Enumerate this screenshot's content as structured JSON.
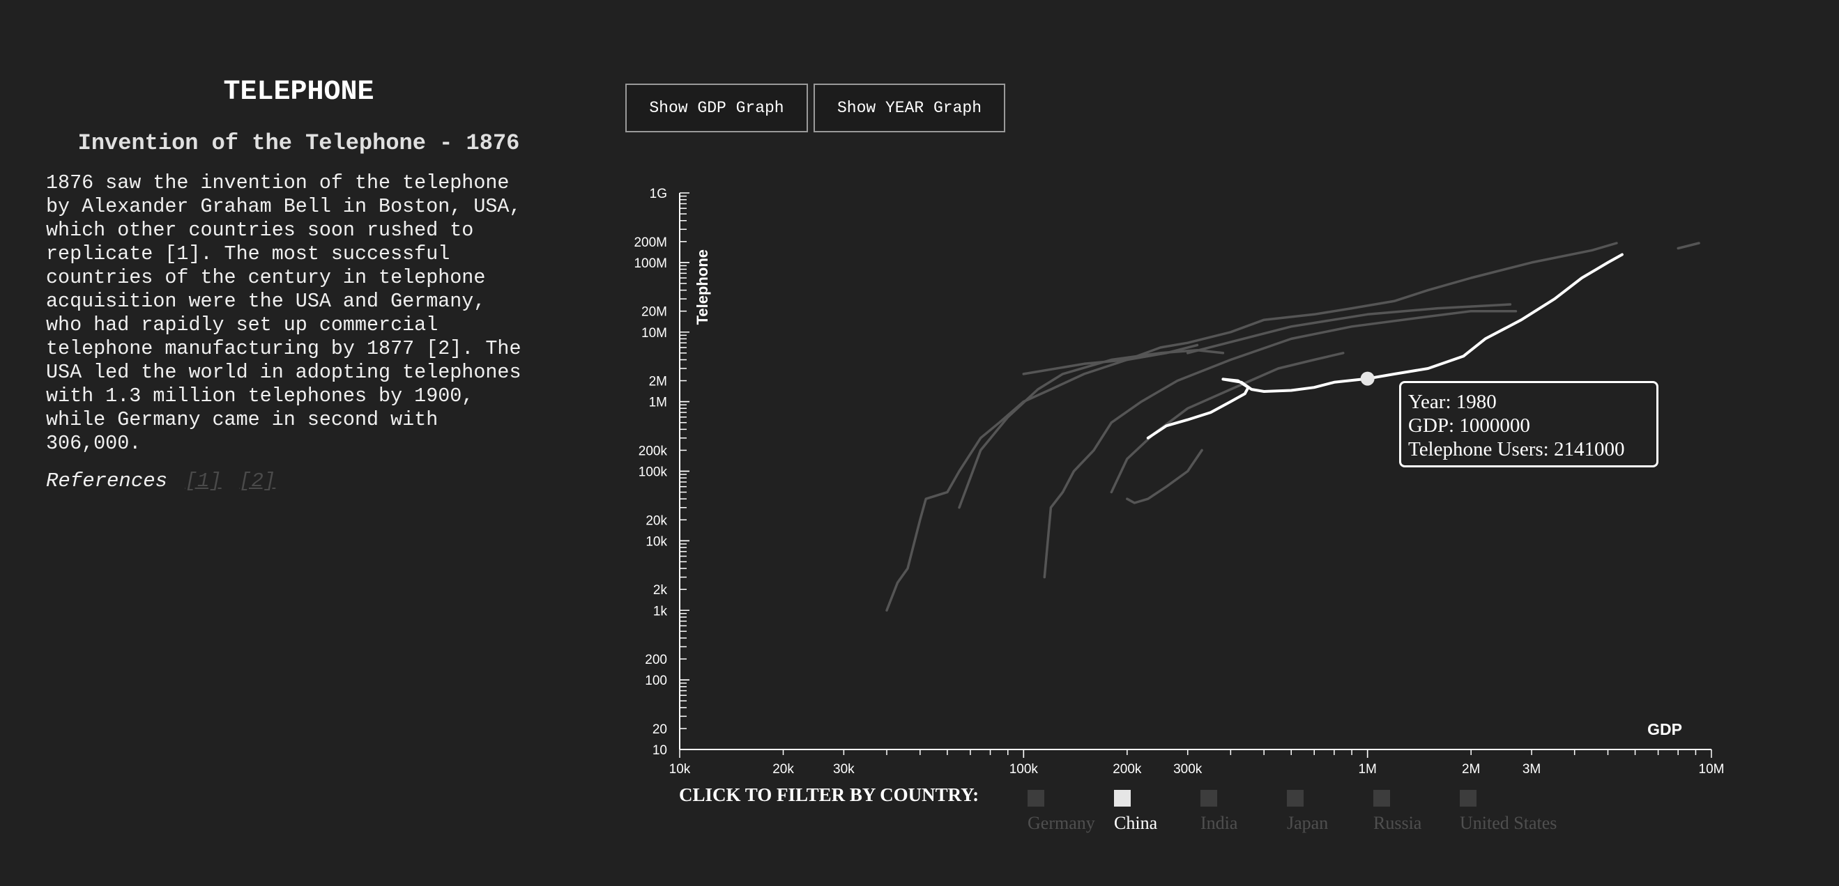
{
  "sidebar": {
    "title": "TELEPHONE",
    "subtitle": "Invention of the Telephone - 1876",
    "body": "1876 saw the invention of the telephone\nby Alexander Graham Bell in Boston, USA,\nwhich other countries soon rushed to\nreplicate [1]. The most successful\ncountries of the century in telephone\nacquisition were the USA and Germany,\nwho had rapidly set up commercial\ntelephone manufacturing by 1877 [2]. The\nUSA led the world in adopting telephones\nwith 1.3 million telephones by 1900,\nwhile Germany came in second with\n306,000.",
    "references_label": "References",
    "references": [
      "[1]",
      "[2]"
    ]
  },
  "buttons": {
    "gdp": "Show GDP Graph",
    "year": "Show YEAR Graph"
  },
  "filter": {
    "label": "CLICK TO FILTER BY COUNTRY:",
    "countries": [
      "Germany",
      "China",
      "India",
      "Japan",
      "Russia",
      "United States"
    ],
    "selected": "China"
  },
  "tooltip": {
    "year": "Year: 1980",
    "gdp": "GDP: 1000000",
    "users": "Telephone Users: 2141000"
  },
  "colors": {
    "background": "#212121",
    "highlight": "#ffffff",
    "dimmed": "#555555"
  },
  "chart_data": {
    "type": "line",
    "xlabel": "GDP",
    "ylabel": "Telephone",
    "xscale": "log",
    "yscale": "log",
    "xlim": [
      10000,
      10000000
    ],
    "ylim": [
      10,
      1000000000
    ],
    "x_ticks": [
      {
        "v": 10000,
        "l": "10k"
      },
      {
        "v": 20000,
        "l": "20k"
      },
      {
        "v": 30000,
        "l": "30k"
      },
      {
        "v": 100000,
        "l": "100k"
      },
      {
        "v": 200000,
        "l": "200k"
      },
      {
        "v": 300000,
        "l": "300k"
      },
      {
        "v": 1000000,
        "l": "1M"
      },
      {
        "v": 2000000,
        "l": "2M"
      },
      {
        "v": 3000000,
        "l": "3M"
      },
      {
        "v": 10000000,
        "l": "10M"
      }
    ],
    "y_ticks": [
      {
        "v": 10,
        "l": "10"
      },
      {
        "v": 20,
        "l": "20"
      },
      {
        "v": 100,
        "l": "100"
      },
      {
        "v": 200,
        "l": "200"
      },
      {
        "v": 1000,
        "l": "1k"
      },
      {
        "v": 2000,
        "l": "2k"
      },
      {
        "v": 10000,
        "l": "10k"
      },
      {
        "v": 20000,
        "l": "20k"
      },
      {
        "v": 100000,
        "l": "100k"
      },
      {
        "v": 200000,
        "l": "200k"
      },
      {
        "v": 1000000,
        "l": "1M"
      },
      {
        "v": 2000000,
        "l": "2M"
      },
      {
        "v": 10000000,
        "l": "10M"
      },
      {
        "v": 20000000,
        "l": "20M"
      },
      {
        "v": 100000000,
        "l": "100M"
      },
      {
        "v": 200000000,
        "l": "200M"
      },
      {
        "v": 1000000000,
        "l": "1G"
      }
    ],
    "highlight_point": {
      "x": 1000000,
      "y": 2141000
    },
    "series": [
      {
        "selected": false,
        "points": [
          [
            40000,
            1000
          ],
          [
            43000,
            2500
          ],
          [
            46000,
            4000
          ],
          [
            50000,
            20000
          ],
          [
            52000,
            40000
          ],
          [
            60000,
            50000
          ],
          [
            65000,
            100000
          ],
          [
            75000,
            300000
          ],
          [
            85000,
            500000
          ],
          [
            100000,
            1000000
          ],
          [
            120000,
            1500000
          ],
          [
            150000,
            2500000
          ],
          [
            200000,
            4000000
          ],
          [
            250000,
            6000000
          ],
          [
            300000,
            7000000
          ],
          [
            400000,
            10000000
          ],
          [
            500000,
            15000000
          ],
          [
            700000,
            18000000
          ],
          [
            900000,
            22000000
          ],
          [
            1200000,
            28000000
          ],
          [
            1500000,
            40000000
          ],
          [
            2000000,
            60000000
          ],
          [
            3000000,
            100000000
          ],
          [
            4500000,
            150000000
          ],
          [
            5300000,
            190000000
          ]
        ]
      },
      {
        "selected": false,
        "points": [
          [
            115000,
            3000
          ],
          [
            120000,
            30000
          ],
          [
            130000,
            50000
          ],
          [
            140000,
            100000
          ],
          [
            160000,
            200000
          ],
          [
            180000,
            500000
          ],
          [
            220000,
            1000000
          ],
          [
            280000,
            2000000
          ],
          [
            400000,
            4000000
          ],
          [
            600000,
            8000000
          ],
          [
            900000,
            12000000
          ],
          [
            1400000,
            16000000
          ],
          [
            2000000,
            20000000
          ],
          [
            2700000,
            20000000
          ]
        ]
      },
      {
        "selected": false,
        "points": [
          [
            65000,
            30000
          ],
          [
            75000,
            200000
          ],
          [
            90000,
            600000
          ],
          [
            110000,
            1500000
          ],
          [
            130000,
            2500000
          ],
          [
            180000,
            4000000
          ],
          [
            250000,
            5000000
          ],
          [
            320000,
            5500000
          ],
          [
            380000,
            5000000
          ]
        ]
      },
      {
        "selected": false,
        "points": [
          [
            100000,
            2500000
          ],
          [
            150000,
            3500000
          ],
          [
            200000,
            4000000
          ],
          [
            260000,
            5000000
          ],
          [
            320000,
            6500000
          ]
        ]
      },
      {
        "selected": false,
        "points": [
          [
            180000,
            50000
          ],
          [
            200000,
            150000
          ],
          [
            240000,
            350000
          ],
          [
            300000,
            800000
          ],
          [
            400000,
            1500000
          ],
          [
            550000,
            3000000
          ],
          [
            700000,
            4000000
          ],
          [
            850000,
            5000000
          ]
        ]
      },
      {
        "selected": false,
        "points": [
          [
            200000,
            40000
          ],
          [
            210000,
            35000
          ],
          [
            230000,
            40000
          ],
          [
            260000,
            60000
          ],
          [
            300000,
            100000
          ],
          [
            330000,
            200000
          ]
        ]
      },
      {
        "selected": false,
        "points": [
          [
            300000,
            5000000
          ],
          [
            600000,
            12000000
          ],
          [
            1000000,
            18000000
          ],
          [
            1600000,
            22000000
          ],
          [
            2600000,
            25000000
          ]
        ]
      },
      {
        "selected": false,
        "points": [
          [
            8000000,
            160000000
          ],
          [
            9200000,
            190000000
          ]
        ]
      },
      {
        "selected": true,
        "points": [
          [
            230000,
            300000
          ],
          [
            260000,
            450000
          ],
          [
            300000,
            550000
          ],
          [
            350000,
            700000
          ],
          [
            400000,
            1000000
          ],
          [
            440000,
            1300000
          ],
          [
            450000,
            1600000
          ],
          [
            420000,
            2000000
          ],
          [
            380000,
            2100000
          ],
          [
            430000,
            1900000
          ],
          [
            460000,
            1500000
          ],
          [
            500000,
            1400000
          ],
          [
            600000,
            1450000
          ],
          [
            700000,
            1600000
          ],
          [
            800000,
            1900000
          ],
          [
            1000000,
            2141000
          ],
          [
            1200000,
            2500000
          ],
          [
            1500000,
            3000000
          ],
          [
            1900000,
            4500000
          ],
          [
            2200000,
            8000000
          ],
          [
            2800000,
            15000000
          ],
          [
            3500000,
            30000000
          ],
          [
            4200000,
            60000000
          ],
          [
            5000000,
            100000000
          ],
          [
            5500000,
            130000000
          ]
        ]
      }
    ]
  }
}
